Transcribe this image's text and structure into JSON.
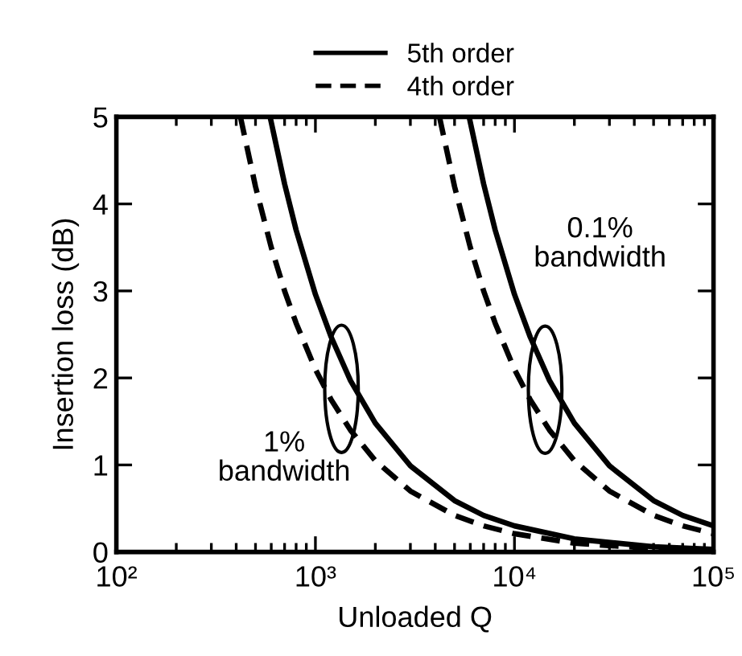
{
  "chart_data": {
    "type": "line",
    "xlabel": "Unloaded Q",
    "ylabel": "Insertion loss (dB)",
    "log": "x",
    "legend": "top",
    "grid": false,
    "xlim": [
      100,
      100000
    ],
    "xticks": [
      {
        "value": 100,
        "label": "10²"
      },
      {
        "value": 1000,
        "label": "10³"
      },
      {
        "value": 10000,
        "label": "10⁴"
      },
      {
        "value": 100000,
        "label": "10⁵"
      }
    ],
    "ylim": [
      0,
      5
    ],
    "yticks": [
      0,
      1,
      2,
      3,
      4,
      5
    ],
    "series": [
      {
        "name": "5th order",
        "color": "#000000",
        "line_style": "solid",
        "x": [
          592,
          700,
          800,
          1000,
          1200,
          1500,
          2000,
          3000,
          5000,
          7000,
          10000,
          20000,
          50000,
          100000
        ],
        "values": [
          5.0,
          4.23,
          3.7,
          2.96,
          2.47,
          1.97,
          1.48,
          0.99,
          0.59,
          0.42,
          0.3,
          0.15,
          0.06,
          0.03
        ]
      },
      {
        "name": "4th order",
        "color": "#000000",
        "line_style": "dashed",
        "x": [
          420,
          500,
          600,
          700,
          800,
          1000,
          1200,
          1500,
          2000,
          3000,
          5000,
          7000,
          10000,
          20000,
          50000,
          100000
        ],
        "values": [
          5.0,
          4.2,
          3.5,
          3.0,
          2.63,
          2.1,
          1.75,
          1.4,
          1.05,
          0.7,
          0.42,
          0.3,
          0.21,
          0.1,
          0.04,
          0.02
        ]
      },
      {
        "color": "#000000",
        "line_style": "solid",
        "x": [
          5920,
          7000,
          8000,
          10000,
          12000,
          15000,
          20000,
          30000,
          50000,
          70000,
          100000
        ],
        "values": [
          5.0,
          4.23,
          3.7,
          2.96,
          2.47,
          1.97,
          1.48,
          0.99,
          0.59,
          0.42,
          0.3
        ]
      },
      {
        "color": "#000000",
        "line_style": "dashed",
        "x": [
          4200,
          5000,
          6000,
          7000,
          8000,
          10000,
          12000,
          15000,
          20000,
          30000,
          50000,
          70000,
          100000
        ],
        "values": [
          5.0,
          4.2,
          3.5,
          3.0,
          2.63,
          2.1,
          1.75,
          1.4,
          1.05,
          0.7,
          0.42,
          0.3,
          0.21
        ]
      }
    ],
    "annotations": [
      "1%\nbandwidth",
      "0.1%\nbandwidth"
    ]
  }
}
